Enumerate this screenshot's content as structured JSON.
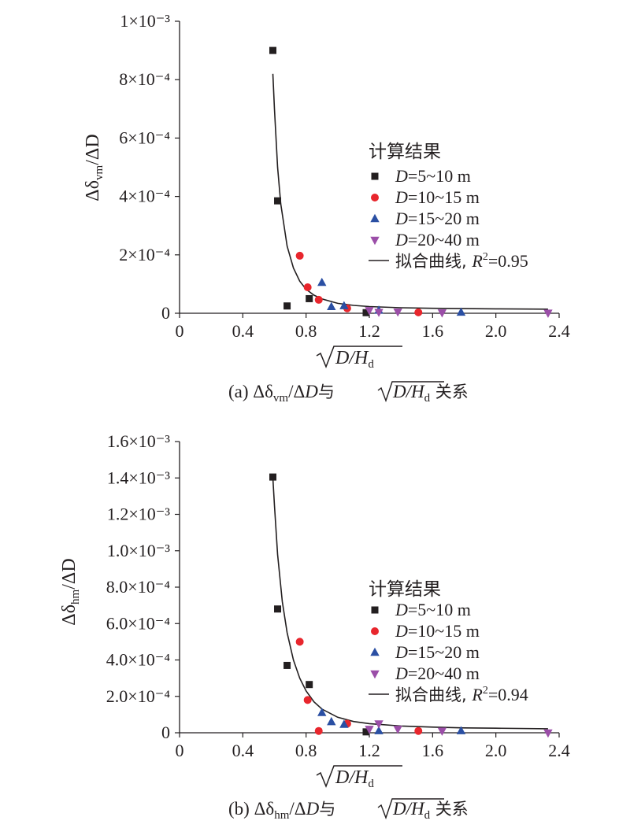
{
  "chart_data": [
    {
      "type": "scatter",
      "panel": "a",
      "caption": "(a) Δδvm/ΔD与√D/Hd 关系",
      "caption_parts": [
        "(a) Δδ",
        "vm",
        "/ΔD与",
        "D/H",
        "d",
        " 关系"
      ],
      "ylabel_parts": [
        "Δδ",
        "vm",
        "/ΔD"
      ],
      "xlabel_parts": [
        "D/H",
        "d"
      ],
      "xlim": [
        0,
        2.4
      ],
      "ylim": [
        0,
        0.001
      ],
      "x_ticks": [
        "0",
        "0.4",
        "0.8",
        "1.2",
        "1.6",
        "2.0",
        "2.4"
      ],
      "y_ticks": [
        "0",
        "2×10⁻⁴",
        "4×10⁻⁴",
        "6×10⁻⁴",
        "8×10⁻⁴",
        "1×10⁻³"
      ],
      "legend_title": "计算结果",
      "legend_placement": "right",
      "series": [
        {
          "name": "D=5~10 m",
          "marker": "square",
          "color": "#231f20",
          "points": [
            [
              0.59,
              0.0009
            ],
            [
              0.62,
              0.000385
            ],
            [
              0.68,
              2.5e-05
            ],
            [
              0.82,
              5e-05
            ],
            [
              1.18,
              2e-06
            ]
          ]
        },
        {
          "name": "D=10~15 m",
          "marker": "circle",
          "color": "#e8262d",
          "points": [
            [
              0.76,
              0.000197
            ],
            [
              0.81,
              8.9e-05
            ],
            [
              0.88,
              4.6e-05
            ],
            [
              1.06,
              1.7e-05
            ],
            [
              1.51,
              3e-06
            ]
          ]
        },
        {
          "name": "D=15~20 m",
          "marker": "triangle-up",
          "color": "#2a4fa3",
          "points": [
            [
              0.9,
              0.000105
            ],
            [
              0.96,
              2.2e-05
            ],
            [
              1.04,
              2.5e-05
            ],
            [
              1.26,
              1e-05
            ],
            [
              1.78,
              3e-06
            ]
          ]
        },
        {
          "name": "D=20~40 m",
          "marker": "triangle-down",
          "color": "#9b4ea8",
          "points": [
            [
              1.2,
              1e-05
            ],
            [
              1.26,
              4e-06
            ],
            [
              1.38,
              5e-06
            ],
            [
              1.66,
              2e-06
            ],
            [
              2.33,
              1e-06
            ]
          ]
        }
      ],
      "fit": {
        "name": "拟合曲线, R²=0.95",
        "r2_label": "=0.95",
        "points": [
          [
            0.59,
            0.00082
          ],
          [
            0.6,
            0.0007
          ],
          [
            0.62,
            0.0005
          ],
          [
            0.64,
            0.000375
          ],
          [
            0.68,
            0.00023
          ],
          [
            0.72,
            0.000155
          ],
          [
            0.76,
            0.00011
          ],
          [
            0.8,
            8.2e-05
          ],
          [
            0.85,
            6.2e-05
          ],
          [
            0.9,
            4.9e-05
          ],
          [
            1.0,
            3.4e-05
          ],
          [
            1.1,
            2.7e-05
          ],
          [
            1.2,
            2.3e-05
          ],
          [
            1.4,
            1.9e-05
          ],
          [
            1.6,
            1.7e-05
          ],
          [
            1.8,
            1.6e-05
          ],
          [
            2.0,
            1.5e-05
          ],
          [
            2.33,
            1.4e-05
          ]
        ]
      }
    },
    {
      "type": "scatter",
      "panel": "b",
      "caption": "(b) Δδhm/ΔD与√D/Hd 关系",
      "caption_parts": [
        "(b) Δδ",
        "hm",
        "/ΔD与",
        "D/H",
        "d",
        " 关系"
      ],
      "ylabel_parts": [
        "Δδ",
        "hm",
        "/ΔD"
      ],
      "xlabel_parts": [
        "D/H",
        "d"
      ],
      "xlim": [
        0,
        2.4
      ],
      "ylim": [
        0,
        0.0016
      ],
      "x_ticks": [
        "0",
        "0.4",
        "0.8",
        "1.2",
        "1.6",
        "2.0",
        "2.4"
      ],
      "y_ticks": [
        "0",
        "2.0×10⁻⁴",
        "4.0×10⁻⁴",
        "6.0×10⁻⁴",
        "8.0×10⁻⁴",
        "1.0×10⁻³",
        "1.2×10⁻³",
        "1.4×10⁻³",
        "1.6×10⁻³"
      ],
      "legend_title": "计算结果",
      "legend_placement": "right",
      "series": [
        {
          "name": "D=5~10 m",
          "marker": "square",
          "color": "#231f20",
          "points": [
            [
              0.59,
              0.001405
            ],
            [
              0.62,
              0.00068
            ],
            [
              0.68,
              0.00037
            ],
            [
              0.82,
              0.000265
            ],
            [
              1.18,
              5e-06
            ]
          ]
        },
        {
          "name": "D=10~15 m",
          "marker": "circle",
          "color": "#e8262d",
          "points": [
            [
              0.76,
              0.0005
            ],
            [
              0.81,
              0.00018
            ],
            [
              0.88,
              1e-05
            ],
            [
              1.06,
              5e-05
            ],
            [
              1.51,
              1e-05
            ]
          ]
        },
        {
          "name": "D=15~20 m",
          "marker": "triangle-up",
          "color": "#2a4fa3",
          "points": [
            [
              0.9,
              0.00011
            ],
            [
              0.96,
              6e-05
            ],
            [
              1.04,
              4.5e-05
            ],
            [
              1.26,
              1e-05
            ],
            [
              1.78,
              1e-05
            ]
          ]
        },
        {
          "name": "D=20~40 m",
          "marker": "triangle-down",
          "color": "#9b4ea8",
          "points": [
            [
              1.2,
              2e-05
            ],
            [
              1.26,
              5e-05
            ],
            [
              1.38,
              2e-05
            ],
            [
              1.66,
              1e-05
            ],
            [
              2.33,
              0.0
            ]
          ]
        }
      ],
      "fit": {
        "name": "拟合曲线, R²=0.94",
        "r2_label": "=0.94",
        "points": [
          [
            0.59,
            0.0014
          ],
          [
            0.6,
            0.00125
          ],
          [
            0.62,
            0.00098
          ],
          [
            0.65,
            0.00072
          ],
          [
            0.68,
            0.00055
          ],
          [
            0.72,
            0.0004
          ],
          [
            0.76,
            0.0003
          ],
          [
            0.8,
            0.00023
          ],
          [
            0.85,
            0.00017
          ],
          [
            0.9,
            0.00013
          ],
          [
            1.0,
            8.5e-05
          ],
          [
            1.1,
            6.2e-05
          ],
          [
            1.2,
            5e-05
          ],
          [
            1.4,
            3.7e-05
          ],
          [
            1.6,
            3.1e-05
          ],
          [
            1.8,
            2.7e-05
          ],
          [
            2.0,
            2.5e-05
          ],
          [
            2.33,
            2.2e-05
          ]
        ]
      }
    }
  ]
}
